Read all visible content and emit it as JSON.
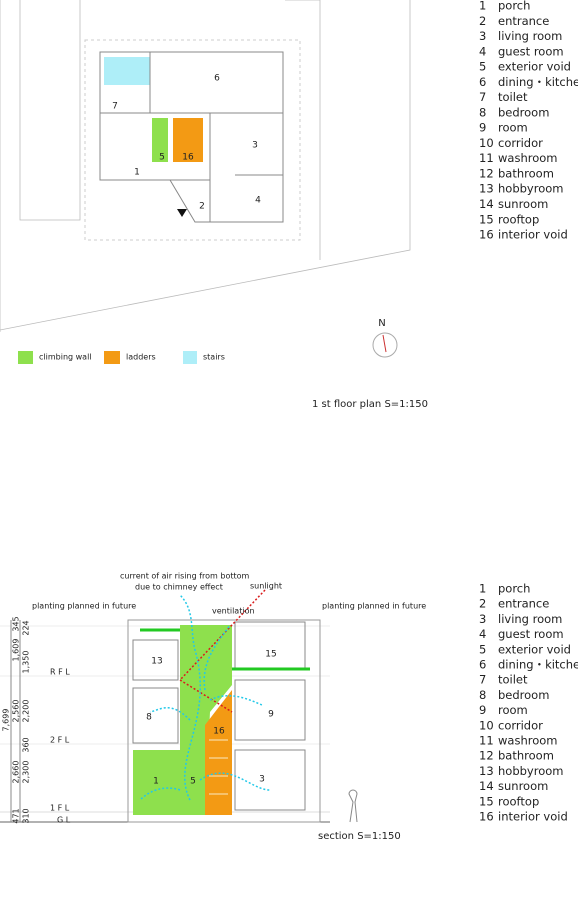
{
  "plan": {
    "room_labels": [
      "5",
      "16",
      "6",
      "7",
      "3",
      "1",
      "2",
      "4"
    ],
    "key": [
      "climbing wall",
      "ladders",
      "stairs"
    ],
    "north": "N",
    "caption": "1 st floor plan S=1:150"
  },
  "plan_legend": [
    {
      "number": "1",
      "name": "porch"
    },
    {
      "number": "2",
      "name": "entrance"
    },
    {
      "number": "3",
      "name": "living room"
    },
    {
      "number": "4",
      "name": "guest room"
    },
    {
      "number": "5",
      "name": "exterior void"
    },
    {
      "number": "6",
      "name": "dining・kitchen"
    },
    {
      "number": "7",
      "name": "toilet"
    },
    {
      "number": "8",
      "name": "bedroom"
    },
    {
      "number": "9",
      "name": "room"
    },
    {
      "number": "10",
      "name": "corridor"
    },
    {
      "number": "11",
      "name": "washroom"
    },
    {
      "number": "12",
      "name": "bathroom"
    },
    {
      "number": "13",
      "name": "hobbyroom"
    },
    {
      "number": "14",
      "name": "sunroom"
    },
    {
      "number": "15",
      "name": "rooftop"
    },
    {
      "number": "16",
      "name": "interior void"
    }
  ],
  "section": {
    "annotations": [
      "current of air rising from bottom",
      "due to chimney effect",
      "sunlight",
      "ventilation",
      "planting planned in future",
      "planting planned in future"
    ],
    "room_labels": [
      "13",
      "15",
      "8",
      "9",
      "16",
      "1",
      "5",
      "3"
    ],
    "levels": [
      "R F L",
      "2 F L",
      "1 F L",
      "G L"
    ],
    "dimensions": [
      "345",
      "1,609",
      "2,560",
      "2,660",
      "471",
      "224",
      "1,350",
      "2,200",
      "360",
      "2,300",
      "310",
      "7,699"
    ],
    "caption": "section S=1:150"
  },
  "section_legend": [
    {
      "number": "1",
      "name": "porch"
    },
    {
      "number": "2",
      "name": "entrance"
    },
    {
      "number": "3",
      "name": "living room"
    },
    {
      "number": "4",
      "name": "guest room"
    },
    {
      "number": "5",
      "name": "exterior void"
    },
    {
      "number": "6",
      "name": "dining・kitchen"
    },
    {
      "number": "7",
      "name": "toilet"
    },
    {
      "number": "8",
      "name": "bedroom"
    },
    {
      "number": "9",
      "name": "room"
    },
    {
      "number": "10",
      "name": "corridor"
    },
    {
      "number": "11",
      "name": "washroom"
    },
    {
      "number": "12",
      "name": "bathroom"
    },
    {
      "number": "13",
      "name": "hobbyroom"
    },
    {
      "number": "14",
      "name": "sunroom"
    },
    {
      "number": "15",
      "name": "rooftop"
    },
    {
      "number": "16",
      "name": "interior void"
    }
  ]
}
